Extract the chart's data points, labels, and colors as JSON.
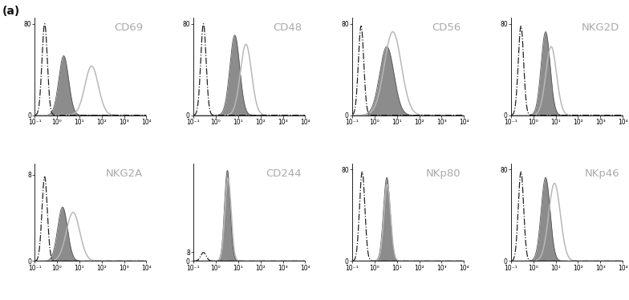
{
  "panels": [
    {
      "title": "CD69",
      "row": 0,
      "col": 0,
      "neg": {
        "mu": -0.55,
        "sigma": 0.12,
        "peak": 80
      },
      "rest": {
        "mu": 0.3,
        "sigma": 0.22,
        "peak": 52
      },
      "act": {
        "mu": 1.55,
        "sigma": 0.3,
        "peak": 43
      },
      "xlim_log": [
        -1.0,
        4.0
      ],
      "ylim": [
        0,
        85
      ],
      "ytick": 80,
      "xticks_pos": [
        -1,
        0,
        1,
        2,
        3,
        4
      ],
      "xtick_labels": [
        "10⁻¹",
        "10⁰",
        "10¹",
        "10²",
        "10³",
        "10⁴"
      ]
    },
    {
      "title": "CD48",
      "row": 0,
      "col": 1,
      "neg": {
        "mu": -0.55,
        "sigma": 0.12,
        "peak": 80
      },
      "rest": {
        "mu": 0.85,
        "sigma": 0.22,
        "peak": 70
      },
      "act": {
        "mu": 1.35,
        "sigma": 0.25,
        "peak": 62
      },
      "xlim_log": [
        -1.0,
        4.0
      ],
      "ylim": [
        0,
        85
      ],
      "ytick": 80,
      "xticks_pos": [
        -1,
        0,
        1,
        2,
        3,
        4
      ],
      "xtick_labels": [
        "10⁻¹",
        "10⁰",
        "10¹",
        "10²",
        "10³",
        "10⁴"
      ]
    },
    {
      "title": "CD56",
      "row": 0,
      "col": 2,
      "neg": {
        "mu": -0.6,
        "sigma": 0.12,
        "peak": 78
      },
      "rest": {
        "mu": 0.55,
        "sigma": 0.32,
        "peak": 60
      },
      "act": {
        "mu": 0.82,
        "sigma": 0.38,
        "peak": 73
      },
      "xlim_log": [
        -1.0,
        4.0
      ],
      "ylim": [
        0,
        85
      ],
      "ytick": 80,
      "xticks_pos": [
        -1,
        0,
        1,
        2,
        3,
        4
      ],
      "xtick_labels": [
        "10⁻¹",
        "10⁰",
        "10¹",
        "10²",
        "10³",
        "10⁴"
      ]
    },
    {
      "title": "NKG2D",
      "row": 0,
      "col": 3,
      "neg": {
        "mu": -0.55,
        "sigma": 0.12,
        "peak": 78
      },
      "rest": {
        "mu": 0.55,
        "sigma": 0.2,
        "peak": 73
      },
      "act": {
        "mu": 0.8,
        "sigma": 0.24,
        "peak": 60
      },
      "xlim_log": [
        -1.0,
        4.0
      ],
      "ylim": [
        0,
        85
      ],
      "ytick": 80,
      "xticks_pos": [
        -1,
        0,
        1,
        2,
        3,
        4
      ],
      "xtick_labels": [
        "10⁻¹",
        "10⁰",
        "10¹",
        "10²",
        "10³",
        "10⁴"
      ]
    },
    {
      "title": "NKG2A",
      "row": 1,
      "col": 0,
      "neg": {
        "mu": -0.55,
        "sigma": 0.12,
        "peak": 7.8
      },
      "rest": {
        "mu": 0.25,
        "sigma": 0.22,
        "peak": 5.0
      },
      "act": {
        "mu": 0.72,
        "sigma": 0.3,
        "peak": 4.5
      },
      "xlim_log": [
        -1.0,
        4.0
      ],
      "ylim": [
        0,
        9
      ],
      "ytick": 8,
      "xticks_pos": [
        -1,
        0,
        1,
        2,
        3,
        4
      ],
      "xtick_labels": [
        "10⁻¹",
        "10⁰",
        "10¹",
        "10²",
        "10³",
        "10⁴"
      ]
    },
    {
      "title": "CD244",
      "row": 1,
      "col": 1,
      "neg": {
        "mu": -0.55,
        "sigma": 0.12,
        "peak": 7.8
      },
      "rest": {
        "mu": 0.52,
        "sigma": 0.13,
        "peak": 82
      },
      "act": {
        "mu": 0.55,
        "sigma": 0.14,
        "peak": 75
      },
      "xlim_log": [
        -1.0,
        4.0
      ],
      "ylim": [
        0,
        88
      ],
      "ytick": 8,
      "xticks_pos": [
        -1,
        0,
        1,
        2,
        3,
        4
      ],
      "xtick_labels": [
        "10⁻¹",
        "10⁰",
        "10¹",
        "10²",
        "10³",
        "10⁴"
      ]
    },
    {
      "title": "NKp80",
      "row": 1,
      "col": 2,
      "neg": {
        "mu": -0.55,
        "sigma": 0.12,
        "peak": 78
      },
      "rest": {
        "mu": 0.55,
        "sigma": 0.15,
        "peak": 73
      },
      "act": {
        "mu": 0.57,
        "sigma": 0.15,
        "peak": 67
      },
      "xlim_log": [
        -1.0,
        4.0
      ],
      "ylim": [
        0,
        85
      ],
      "ytick": 80,
      "xticks_pos": [
        -1,
        0,
        1,
        2,
        3,
        4
      ],
      "xtick_labels": [
        "10⁻¹",
        "10⁰",
        "10¹",
        "10²",
        "10³",
        "10⁴"
      ]
    },
    {
      "title": "NKp46",
      "row": 1,
      "col": 3,
      "neg": {
        "mu": -0.55,
        "sigma": 0.12,
        "peak": 78
      },
      "rest": {
        "mu": 0.55,
        "sigma": 0.2,
        "peak": 73
      },
      "act": {
        "mu": 0.95,
        "sigma": 0.26,
        "peak": 68
      },
      "xlim_log": [
        -1.0,
        4.0
      ],
      "ylim": [
        0,
        85
      ],
      "ytick": 80,
      "xticks_pos": [
        -1,
        0,
        1,
        2,
        3,
        4
      ],
      "xtick_labels": [
        "10⁻¹",
        "10⁰",
        "10¹",
        "10²",
        "10³",
        "10⁴"
      ]
    }
  ],
  "bg_color": "#ffffff",
  "fill_color": "#666666",
  "fill_alpha": 0.75,
  "rest_line_color": "#555555",
  "act_line_color": "#b8b8b8",
  "neg_color": "#222222",
  "title_color": "#aaaaaa",
  "title_fontsize": 9.5,
  "tick_fontsize": 5.5,
  "panel_label": "(a)",
  "panel_label_fontsize": 10
}
